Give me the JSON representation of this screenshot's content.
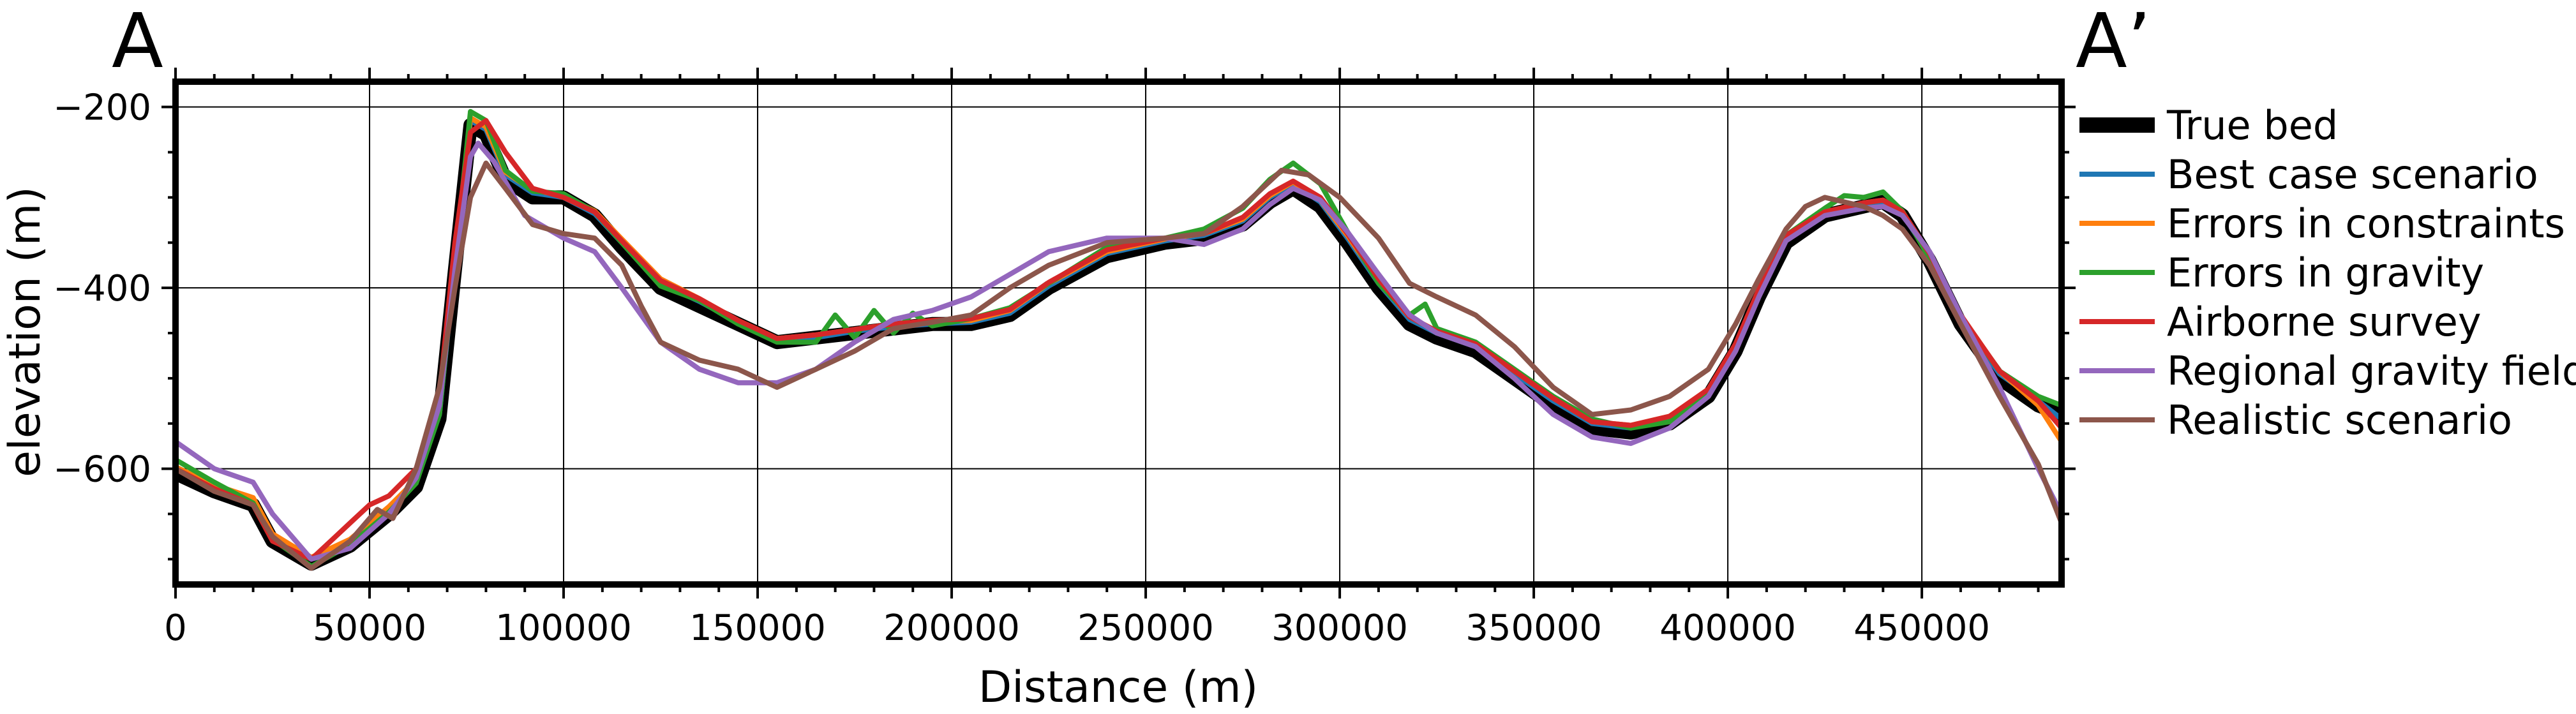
{
  "chart_data": {
    "type": "line",
    "title": "",
    "profile_start_label": "A",
    "profile_end_label": "A’",
    "xlabel": "Distance (m)",
    "ylabel": "elevation (m)",
    "xlim": [
      0,
      486000
    ],
    "ylim": [
      -728,
      -172
    ],
    "xticks": [
      0,
      50000,
      100000,
      150000,
      200000,
      250000,
      300000,
      350000,
      400000,
      450000
    ],
    "xtick_labels": [
      "0",
      "50000",
      "100000",
      "150000",
      "200000",
      "250000",
      "300000",
      "350000",
      "400000",
      "450000"
    ],
    "yticks": [
      -200,
      -400,
      -600
    ],
    "ytick_labels": [
      "−200",
      "−400",
      "−600"
    ],
    "grid": true,
    "legend_position": "right, outside plot",
    "series": [
      {
        "name": "True bed",
        "color": "#000000",
        "x": [
          0,
          10000,
          20000,
          25000,
          35000,
          45000,
          55000,
          62000,
          68000,
          72000,
          76000,
          80000,
          85000,
          92000,
          100000,
          108000,
          115000,
          125000,
          135000,
          145000,
          155000,
          165000,
          175000,
          185000,
          195000,
          205000,
          215000,
          225000,
          240000,
          255000,
          265000,
          275000,
          282000,
          288000,
          295000,
          302000,
          310000,
          318000,
          325000,
          335000,
          345000,
          355000,
          365000,
          375000,
          385000,
          395000,
          402000,
          408000,
          415000,
          425000,
          435000,
          440000,
          445000,
          452000,
          460000,
          470000,
          480000,
          486000
        ],
        "y": [
          -605,
          -625,
          -640,
          -680,
          -705,
          -685,
          -650,
          -620,
          -545,
          -380,
          -220,
          -230,
          -280,
          -300,
          -300,
          -320,
          -355,
          -400,
          -420,
          -440,
          -460,
          -455,
          -450,
          -445,
          -440,
          -440,
          -430,
          -400,
          -365,
          -350,
          -345,
          -330,
          -305,
          -290,
          -310,
          -350,
          -400,
          -440,
          -455,
          -470,
          -500,
          -530,
          -555,
          -560,
          -550,
          -520,
          -470,
          -410,
          -350,
          -320,
          -310,
          -305,
          -320,
          -370,
          -440,
          -500,
          -530,
          -540
        ]
      },
      {
        "name": "Best case scenario",
        "color": "#1f77b4",
        "x": [
          0,
          10000,
          20000,
          25000,
          35000,
          45000,
          55000,
          62000,
          68000,
          72000,
          76000,
          80000,
          85000,
          92000,
          100000,
          108000,
          115000,
          125000,
          135000,
          145000,
          155000,
          165000,
          175000,
          185000,
          195000,
          205000,
          215000,
          225000,
          240000,
          255000,
          265000,
          275000,
          282000,
          288000,
          295000,
          302000,
          310000,
          318000,
          325000,
          335000,
          345000,
          355000,
          365000,
          375000,
          385000,
          395000,
          402000,
          408000,
          415000,
          425000,
          435000,
          440000,
          445000,
          452000,
          460000,
          470000,
          480000,
          486000
        ],
        "y": [
          -600,
          -620,
          -635,
          -675,
          -700,
          -680,
          -645,
          -615,
          -540,
          -375,
          -215,
          -225,
          -275,
          -295,
          -300,
          -318,
          -350,
          -395,
          -415,
          -438,
          -458,
          -455,
          -448,
          -443,
          -440,
          -438,
          -428,
          -398,
          -362,
          -348,
          -342,
          -326,
          -300,
          -285,
          -305,
          -345,
          -395,
          -435,
          -450,
          -465,
          -495,
          -525,
          -550,
          -555,
          -545,
          -515,
          -465,
          -405,
          -345,
          -318,
          -308,
          -305,
          -318,
          -365,
          -435,
          -495,
          -525,
          -545
        ]
      },
      {
        "name": "Errors in constraints",
        "color": "#ff7f0e",
        "x": [
          0,
          10000,
          20000,
          25000,
          35000,
          45000,
          55000,
          62000,
          68000,
          72000,
          76000,
          80000,
          85000,
          92000,
          100000,
          108000,
          115000,
          125000,
          135000,
          145000,
          155000,
          165000,
          175000,
          185000,
          195000,
          205000,
          215000,
          225000,
          240000,
          255000,
          265000,
          275000,
          282000,
          288000,
          295000,
          302000,
          310000,
          318000,
          325000,
          335000,
          345000,
          355000,
          365000,
          375000,
          385000,
          395000,
          402000,
          408000,
          415000,
          425000,
          435000,
          440000,
          445000,
          452000,
          460000,
          470000,
          480000,
          486000
        ],
        "y": [
          -598,
          -618,
          -632,
          -672,
          -698,
          -678,
          -642,
          -612,
          -535,
          -370,
          -212,
          -222,
          -272,
          -292,
          -298,
          -315,
          -346,
          -390,
          -412,
          -436,
          -456,
          -452,
          -446,
          -440,
          -438,
          -436,
          -425,
          -395,
          -360,
          -346,
          -340,
          -324,
          -298,
          -283,
          -303,
          -342,
          -392,
          -432,
          -448,
          -462,
          -492,
          -522,
          -548,
          -552,
          -542,
          -512,
          -462,
          -402,
          -342,
          -316,
          -306,
          -303,
          -316,
          -362,
          -430,
          -492,
          -530,
          -570
        ]
      },
      {
        "name": "Errors in gravity",
        "color": "#2ca02c",
        "x": [
          0,
          10000,
          20000,
          25000,
          35000,
          45000,
          55000,
          62000,
          68000,
          72000,
          76000,
          80000,
          85000,
          92000,
          100000,
          108000,
          115000,
          125000,
          135000,
          145000,
          155000,
          165000,
          170000,
          175000,
          180000,
          185000,
          190000,
          195000,
          205000,
          215000,
          225000,
          240000,
          255000,
          265000,
          275000,
          282000,
          288000,
          295000,
          302000,
          310000,
          318000,
          322000,
          325000,
          335000,
          345000,
          355000,
          365000,
          375000,
          385000,
          395000,
          402000,
          408000,
          415000,
          425000,
          430000,
          435000,
          440000,
          445000,
          452000,
          460000,
          470000,
          480000,
          486000
        ],
        "y": [
          -590,
          -615,
          -638,
          -678,
          -708,
          -684,
          -648,
          -616,
          -540,
          -372,
          -205,
          -215,
          -270,
          -293,
          -296,
          -316,
          -350,
          -398,
          -414,
          -440,
          -460,
          -460,
          -430,
          -455,
          -425,
          -450,
          -428,
          -442,
          -434,
          -422,
          -395,
          -355,
          -345,
          -335,
          -312,
          -280,
          -262,
          -285,
          -338,
          -395,
          -430,
          -418,
          -445,
          -460,
          -490,
          -520,
          -545,
          -555,
          -548,
          -515,
          -465,
          -405,
          -342,
          -312,
          -298,
          -300,
          -294,
          -315,
          -368,
          -432,
          -492,
          -520,
          -530
        ]
      },
      {
        "name": "Airborne survey",
        "color": "#d62728",
        "x": [
          0,
          10000,
          20000,
          25000,
          35000,
          40000,
          45000,
          50000,
          55000,
          62000,
          68000,
          72000,
          76000,
          80000,
          85000,
          92000,
          100000,
          108000,
          115000,
          125000,
          135000,
          145000,
          155000,
          165000,
          175000,
          185000,
          195000,
          205000,
          215000,
          225000,
          240000,
          255000,
          265000,
          275000,
          282000,
          288000,
          295000,
          302000,
          310000,
          318000,
          325000,
          335000,
          345000,
          355000,
          365000,
          375000,
          385000,
          395000,
          402000,
          408000,
          415000,
          425000,
          435000,
          440000,
          445000,
          452000,
          460000,
          470000,
          480000,
          486000
        ],
        "y": [
          -600,
          -622,
          -640,
          -680,
          -700,
          -680,
          -660,
          -640,
          -630,
          -600,
          -520,
          -350,
          -228,
          -215,
          -250,
          -290,
          -300,
          -316,
          -348,
          -392,
          -412,
          -436,
          -456,
          -452,
          -446,
          -440,
          -436,
          -434,
          -424,
          -394,
          -358,
          -345,
          -340,
          -322,
          -296,
          -282,
          -300,
          -340,
          -390,
          -432,
          -448,
          -462,
          -492,
          -522,
          -548,
          -552,
          -542,
          -512,
          -462,
          -402,
          -342,
          -316,
          -306,
          -303,
          -316,
          -362,
          -430,
          -492,
          -525,
          -555
        ]
      },
      {
        "name": "Regional gravity field",
        "color": "#9467bd",
        "x": [
          0,
          10000,
          20000,
          25000,
          35000,
          45000,
          55000,
          62000,
          68000,
          72000,
          76000,
          78000,
          82000,
          90000,
          100000,
          108000,
          115000,
          125000,
          135000,
          145000,
          155000,
          165000,
          175000,
          185000,
          195000,
          205000,
          215000,
          225000,
          240000,
          255000,
          265000,
          275000,
          282000,
          288000,
          295000,
          302000,
          310000,
          318000,
          325000,
          335000,
          345000,
          355000,
          365000,
          375000,
          385000,
          395000,
          402000,
          408000,
          415000,
          425000,
          435000,
          440000,
          445000,
          452000,
          460000,
          470000,
          480000,
          486000
        ],
        "y": [
          -570,
          -600,
          -615,
          -650,
          -700,
          -688,
          -650,
          -610,
          -530,
          -380,
          -255,
          -240,
          -260,
          -320,
          -345,
          -360,
          -400,
          -460,
          -490,
          -505,
          -505,
          -490,
          -460,
          -435,
          -425,
          -410,
          -385,
          -360,
          -345,
          -345,
          -352,
          -335,
          -308,
          -290,
          -303,
          -338,
          -385,
          -430,
          -450,
          -465,
          -500,
          -540,
          -565,
          -572,
          -555,
          -520,
          -470,
          -410,
          -348,
          -320,
          -312,
          -310,
          -320,
          -360,
          -430,
          -510,
          -600,
          -650
        ]
      },
      {
        "name": "Realistic scenario",
        "color": "#8c564b",
        "x": [
          0,
          10000,
          20000,
          25000,
          35000,
          45000,
          52000,
          56000,
          62000,
          68000,
          72000,
          76000,
          80000,
          85000,
          92000,
          100000,
          108000,
          115000,
          120000,
          125000,
          135000,
          145000,
          155000,
          165000,
          175000,
          185000,
          195000,
          205000,
          215000,
          225000,
          240000,
          255000,
          265000,
          275000,
          285000,
          292000,
          300000,
          310000,
          318000,
          325000,
          335000,
          345000,
          355000,
          365000,
          375000,
          385000,
          395000,
          402000,
          408000,
          415000,
          420000,
          425000,
          430000,
          435000,
          440000,
          445000,
          452000,
          460000,
          470000,
          480000,
          486000
        ],
        "y": [
          -600,
          -625,
          -640,
          -675,
          -710,
          -680,
          -645,
          -655,
          -600,
          -510,
          -400,
          -300,
          -262,
          -290,
          -330,
          -340,
          -345,
          -375,
          -420,
          -460,
          -480,
          -490,
          -510,
          -490,
          -470,
          -445,
          -438,
          -430,
          -400,
          -375,
          -350,
          -345,
          -340,
          -310,
          -270,
          -275,
          -300,
          -345,
          -395,
          -410,
          -430,
          -465,
          -510,
          -540,
          -535,
          -520,
          -490,
          -440,
          -390,
          -335,
          -310,
          -300,
          -305,
          -310,
          -320,
          -335,
          -375,
          -440,
          -520,
          -595,
          -660
        ]
      }
    ]
  }
}
